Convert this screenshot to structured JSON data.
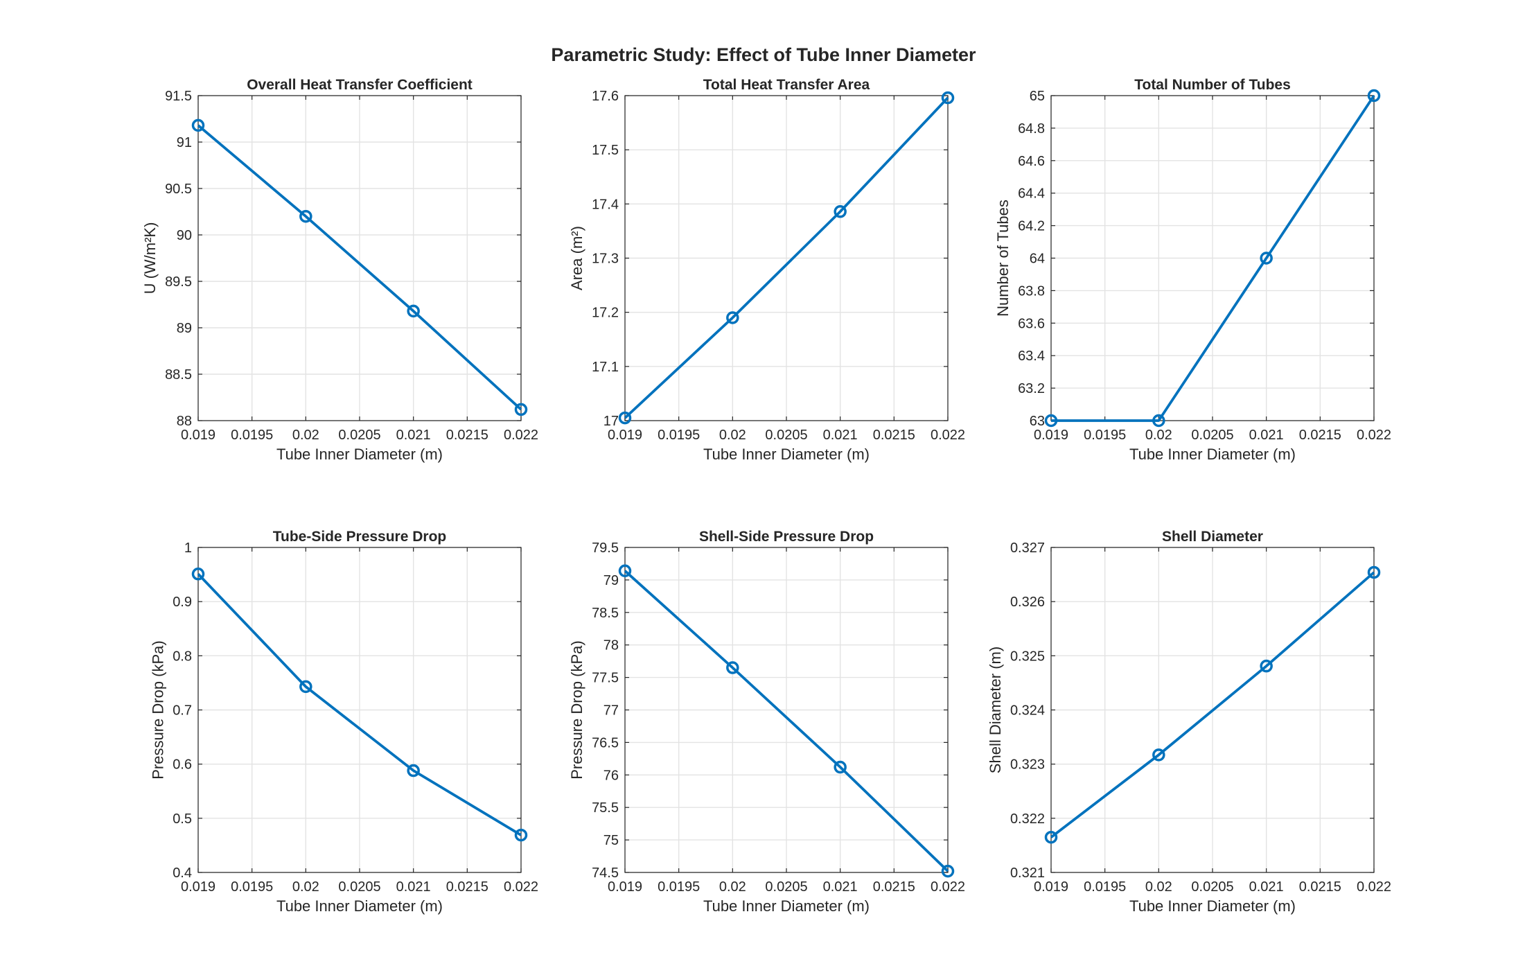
{
  "figure_title": "Parametric Study: Effect of Tube Inner Diameter",
  "colors": {
    "series": "#0072BD",
    "axes": "#262626",
    "grid": "#e3e3e3",
    "background": "#ffffff"
  },
  "chart_data": [
    {
      "type": "line",
      "title": "Overall Heat Transfer Coefficient",
      "xlabel": "Tube Inner Diameter (m)",
      "ylabel": "U (W/m²K)",
      "x": [
        0.019,
        0.02,
        0.021,
        0.022
      ],
      "values": [
        91.18,
        90.2,
        89.18,
        88.12
      ],
      "xlim": [
        0.019,
        0.022
      ],
      "ylim": [
        88,
        91.5
      ],
      "xticks": [
        "0.019",
        "0.0195",
        "0.02",
        "0.0205",
        "0.021",
        "0.0215",
        "0.022"
      ],
      "yticks": [
        "88",
        "88.5",
        "89",
        "89.5",
        "90",
        "90.5",
        "91",
        "91.5"
      ],
      "grid": true,
      "marker": "circle"
    },
    {
      "type": "line",
      "title": "Total Heat Transfer Area",
      "xlabel": "Tube Inner Diameter (m)",
      "ylabel": "Area (m²)",
      "x": [
        0.019,
        0.02,
        0.021,
        0.022
      ],
      "values": [
        17.005,
        17.19,
        17.386,
        17.596
      ],
      "xlim": [
        0.019,
        0.022
      ],
      "ylim": [
        17,
        17.6
      ],
      "xticks": [
        "0.019",
        "0.0195",
        "0.02",
        "0.0205",
        "0.021",
        "0.0215",
        "0.022"
      ],
      "yticks": [
        "17",
        "17.1",
        "17.2",
        "17.3",
        "17.4",
        "17.5",
        "17.6"
      ],
      "grid": true,
      "marker": "circle"
    },
    {
      "type": "line",
      "title": "Total Number of Tubes",
      "xlabel": "Tube Inner Diameter (m)",
      "ylabel": "Number of Tubes",
      "x": [
        0.019,
        0.02,
        0.021,
        0.022
      ],
      "values": [
        63,
        63,
        64,
        65
      ],
      "xlim": [
        0.019,
        0.022
      ],
      "ylim": [
        63,
        65
      ],
      "xticks": [
        "0.019",
        "0.0195",
        "0.02",
        "0.0205",
        "0.021",
        "0.0215",
        "0.022"
      ],
      "yticks": [
        "63",
        "63.2",
        "63.4",
        "63.6",
        "63.8",
        "64",
        "64.2",
        "64.4",
        "64.6",
        "64.8",
        "65"
      ],
      "grid": true,
      "marker": "circle"
    },
    {
      "type": "line",
      "title": "Tube-Side Pressure Drop",
      "xlabel": "Tube Inner Diameter (m)",
      "ylabel": "Pressure Drop (kPa)",
      "x": [
        0.019,
        0.02,
        0.021,
        0.022
      ],
      "values": [
        0.951,
        0.743,
        0.588,
        0.469
      ],
      "xlim": [
        0.019,
        0.022
      ],
      "ylim": [
        0.4,
        1
      ],
      "xticks": [
        "0.019",
        "0.0195",
        "0.02",
        "0.0205",
        "0.021",
        "0.0215",
        "0.022"
      ],
      "yticks": [
        "0.4",
        "0.5",
        "0.6",
        "0.7",
        "0.8",
        "0.9",
        "1"
      ],
      "grid": true,
      "marker": "circle"
    },
    {
      "type": "line",
      "title": "Shell-Side Pressure Drop",
      "xlabel": "Tube Inner Diameter (m)",
      "ylabel": "Pressure Drop (kPa)",
      "x": [
        0.019,
        0.02,
        0.021,
        0.022
      ],
      "values": [
        79.14,
        77.65,
        76.12,
        74.52
      ],
      "xlim": [
        0.019,
        0.022
      ],
      "ylim": [
        74.5,
        79.5
      ],
      "xticks": [
        "0.019",
        "0.0195",
        "0.02",
        "0.0205",
        "0.021",
        "0.0215",
        "0.022"
      ],
      "yticks": [
        "74.5",
        "75",
        "75.5",
        "76",
        "76.5",
        "77",
        "77.5",
        "78",
        "78.5",
        "79",
        "79.5"
      ],
      "grid": true,
      "marker": "circle"
    },
    {
      "type": "line",
      "title": "Shell Diameter",
      "xlabel": "Tube Inner Diameter (m)",
      "ylabel": "Shell Diameter (m)",
      "x": [
        0.019,
        0.02,
        0.021,
        0.022
      ],
      "values": [
        0.32165,
        0.32317,
        0.32481,
        0.32654
      ],
      "xlim": [
        0.019,
        0.022
      ],
      "ylim": [
        0.321,
        0.327
      ],
      "xticks": [
        "0.019",
        "0.0195",
        "0.02",
        "0.0205",
        "0.021",
        "0.0215",
        "0.022"
      ],
      "yticks": [
        "0.321",
        "0.322",
        "0.323",
        "0.324",
        "0.325",
        "0.326",
        "0.327"
      ],
      "grid": true,
      "marker": "circle"
    }
  ]
}
